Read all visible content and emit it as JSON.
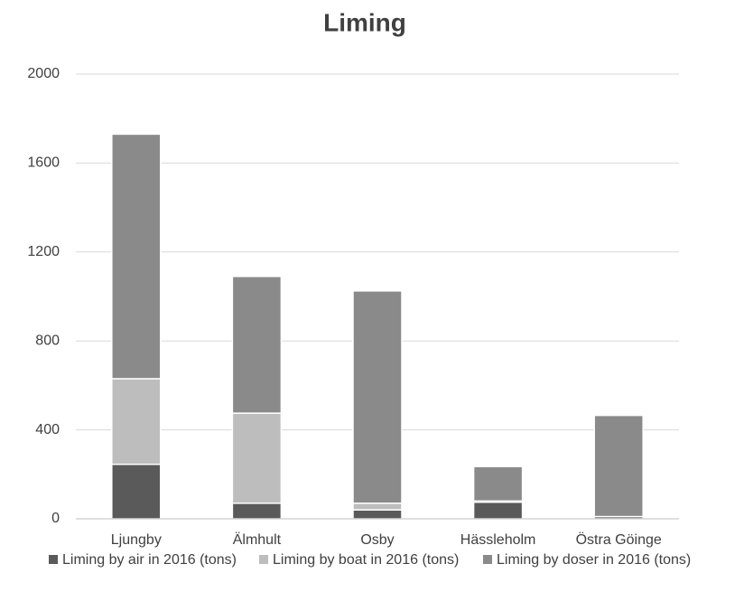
{
  "chart_data": {
    "type": "stacked_bar",
    "title": "Liming",
    "categories": [
      "Ljungby",
      "Älmhult",
      "Osby",
      "Hässleholm",
      "Östra Göinge"
    ],
    "series": [
      {
        "name": "Liming by air in 2016 (tons)",
        "color": "#5a5a5a",
        "values": [
          245,
          70,
          40,
          75,
          10
        ]
      },
      {
        "name": "Liming by boat in 2016 (tons)",
        "color": "#bdbdbd",
        "values": [
          385,
          405,
          30,
          5,
          0
        ]
      },
      {
        "name": "Liming by doser in 2016 (tons)",
        "color": "#8a8a8a",
        "values": [
          1100,
          615,
          955,
          155,
          455
        ]
      }
    ],
    "ylim": [
      0,
      2000
    ],
    "yticks": [
      0,
      400,
      800,
      1200,
      1600,
      2000
    ],
    "grid": true,
    "legend": "bottom"
  }
}
